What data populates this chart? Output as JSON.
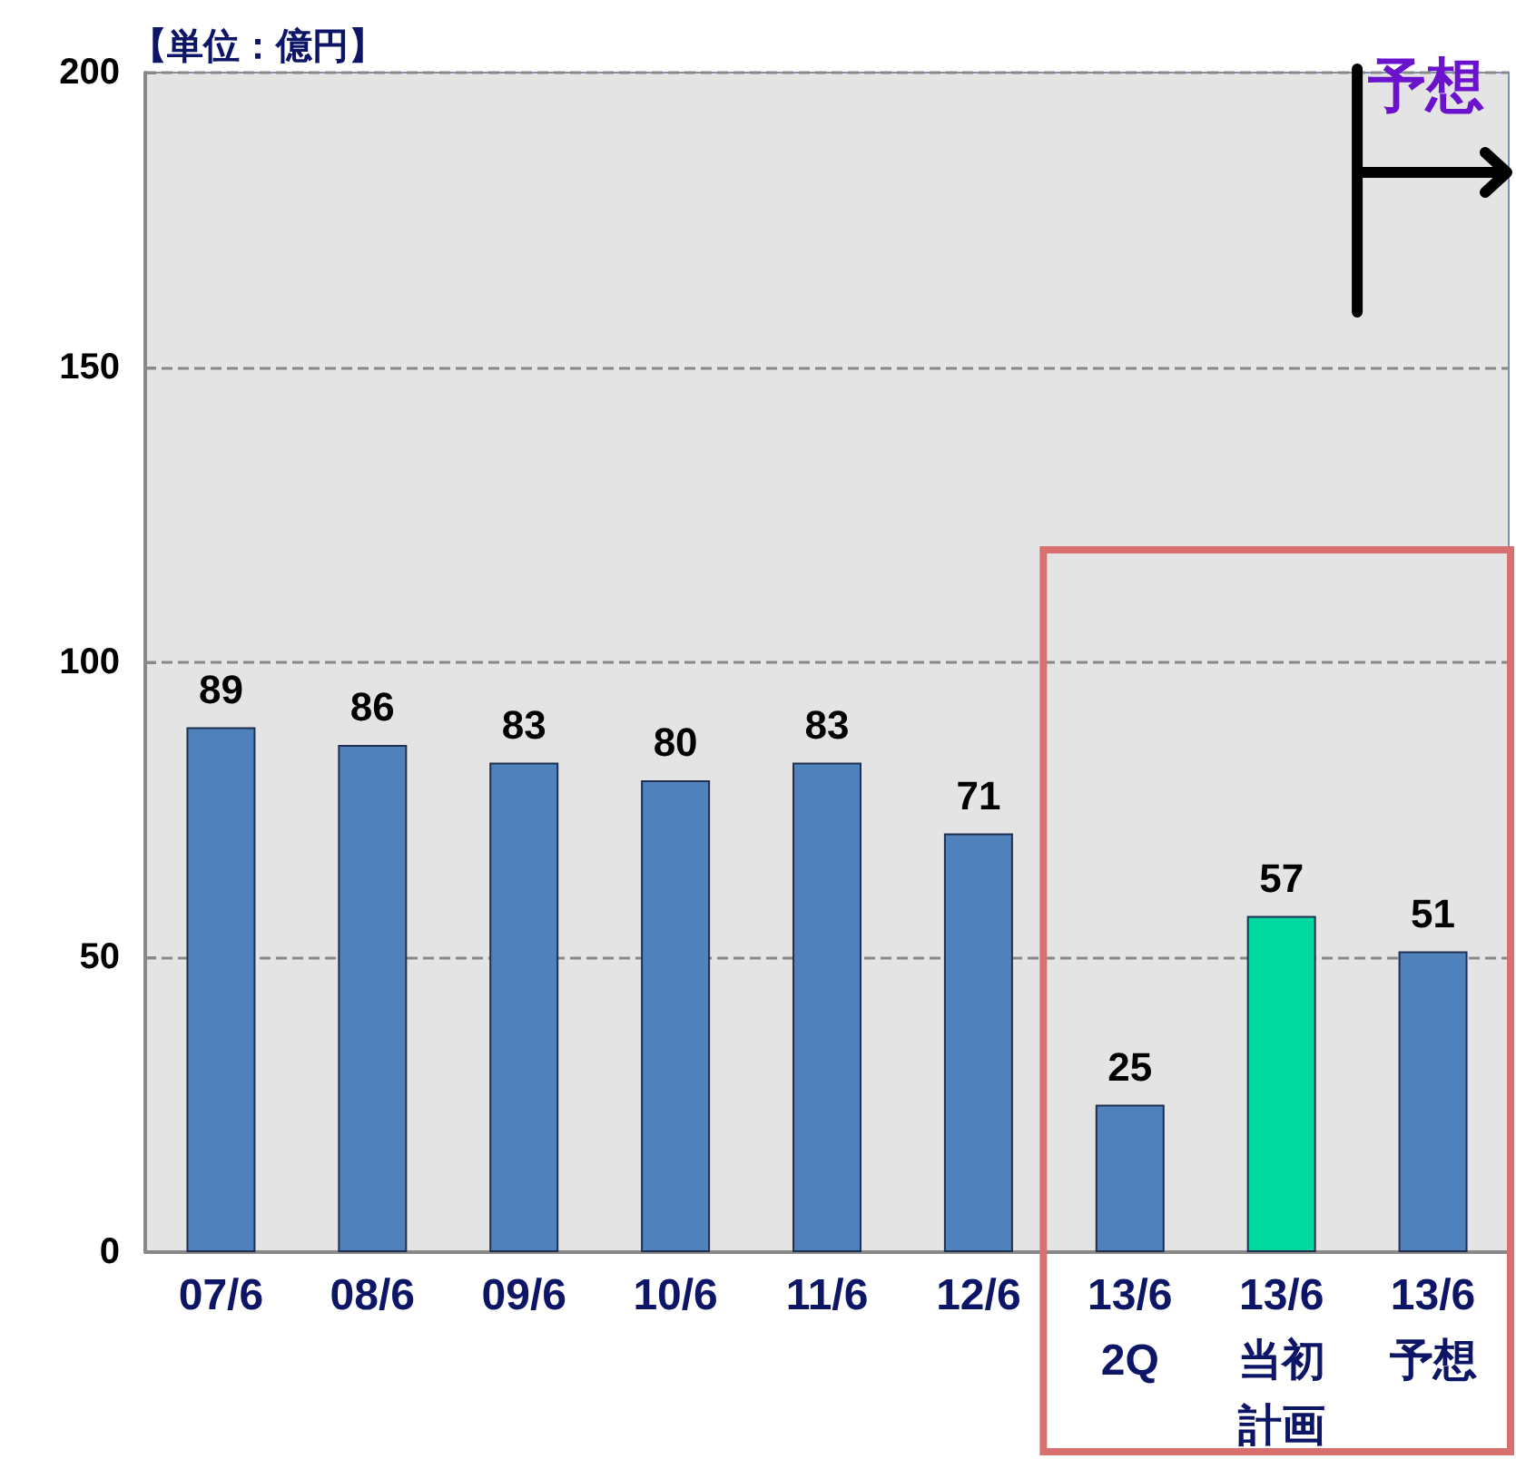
{
  "chart_data": {
    "type": "bar",
    "ylabel": "【単位：億円】",
    "categories": [
      "07/6",
      "08/6",
      "09/6",
      "10/6",
      "11/6",
      "12/6",
      "13/6\n2Q",
      "13/6\n当初計画",
      "13/6\n予想"
    ],
    "values": [
      89,
      86,
      83,
      80,
      83,
      71,
      25,
      57,
      51
    ],
    "colors": [
      "#4f81bd",
      "#4f81bd",
      "#4f81bd",
      "#4f81bd",
      "#4f81bd",
      "#4f81bd",
      "#4f81bd",
      "#00d8a0",
      "#4f81bd"
    ],
    "ylim": [
      0,
      200
    ],
    "yticks": [
      0,
      50,
      100,
      150,
      200
    ],
    "grid": "y",
    "data_labels": true,
    "annotations": [
      "予想"
    ]
  }
}
